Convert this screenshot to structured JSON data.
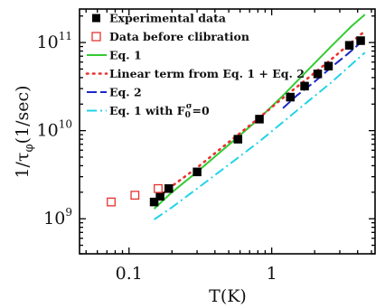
{
  "chart_data": {
    "type": "scatter",
    "title": "",
    "xlabel": "T(K)",
    "ylabel_main": "1/τ",
    "ylabel_sub": "φ",
    "ylabel_unit": "(1/sec)",
    "x_scale": "log",
    "y_scale": "log",
    "xlim": [
      0.045,
      5.3
    ],
    "ylim": [
      400000000.0,
      240000000000.0
    ],
    "x_ticks": [
      {
        "value": 0.1,
        "label": "0.1"
      },
      {
        "value": 1,
        "label": "1"
      }
    ],
    "y_ticks": [
      {
        "value": 1000000000.0,
        "base": "10",
        "exp": "9"
      },
      {
        "value": 10000000000.0,
        "base": "10",
        "exp": "10"
      },
      {
        "value": 100000000000.0,
        "base": "10",
        "exp": "11"
      }
    ],
    "grid": false,
    "legend_position": "top-left",
    "series": [
      {
        "name": "Experimental data",
        "kind": "marker-filled-square",
        "color": "#000000",
        "x": [
          0.15,
          0.165,
          0.19,
          0.3,
          0.58,
          0.82,
          1.35,
          1.7,
          2.1,
          2.5,
          3.5,
          4.2
        ],
        "y": [
          1550000000.0,
          1800000000.0,
          2200000000.0,
          3400000000.0,
          8000000000.0,
          13500000000.0,
          24000000000.0,
          32000000000.0,
          44000000000.0,
          54000000000.0,
          93000000000.0,
          105000000000.0
        ]
      },
      {
        "name": "Data before clibration",
        "kind": "marker-open-square",
        "color": "#e8322e",
        "x": [
          0.075,
          0.11,
          0.16
        ],
        "y": [
          1550000000.0,
          1850000000.0,
          2200000000.0
        ]
      },
      {
        "name": "Eq. 1",
        "kind": "line-solid",
        "color": "#33cc33",
        "x": [
          0.15,
          0.2,
          0.3,
          0.5,
          0.8,
          1.2,
          1.8,
          2.6,
          3.6,
          4.5
        ],
        "y": [
          1300000000.0,
          2000000000.0,
          3400000000.0,
          6900000000.0,
          13300000000.0,
          25000000000.0,
          49000000000.0,
          90000000000.0,
          152000000000.0,
          208000000000.0
        ]
      },
      {
        "name": "Linear term from Eq. 1 + Eq. 2",
        "kind": "line-dotted",
        "color": "#e8322e",
        "x": [
          0.15,
          0.2,
          0.3,
          0.5,
          0.8,
          1.2,
          1.8,
          2.6,
          3.6,
          4.5
        ],
        "y": [
          1600000000.0,
          2350000000.0,
          3800000000.0,
          7400000000.0,
          13600000000.0,
          23500000000.0,
          39500000000.0,
          64000000000.0,
          100000000000.0,
          135000000000.0
        ]
      },
      {
        "name": "Eq. 2",
        "kind": "line-dashed",
        "color": "#1a28c8",
        "x": [
          1.2,
          1.5,
          2.0,
          2.6,
          3.4,
          4.5
        ],
        "y": [
          18000000000.0,
          25000000000.0,
          36000000000.0,
          52000000000.0,
          74000000000.0,
          110000000000.0
        ]
      },
      {
        "name": "Eq. 1 with F",
        "name_sub": "0",
        "name_sup": "σ",
        "name_rest": "=0",
        "kind": "line-dashdot",
        "color": "#22d3e8",
        "x": [
          0.15,
          0.2,
          0.3,
          0.5,
          0.8,
          1.2,
          1.8,
          2.6,
          3.6,
          4.5
        ],
        "y": [
          980000000.0,
          1350000000.0,
          2200000000.0,
          4100000000.0,
          7300000000.0,
          12500000000.0,
          21500000000.0,
          35000000000.0,
          56000000000.0,
          77000000000.0
        ]
      }
    ]
  }
}
